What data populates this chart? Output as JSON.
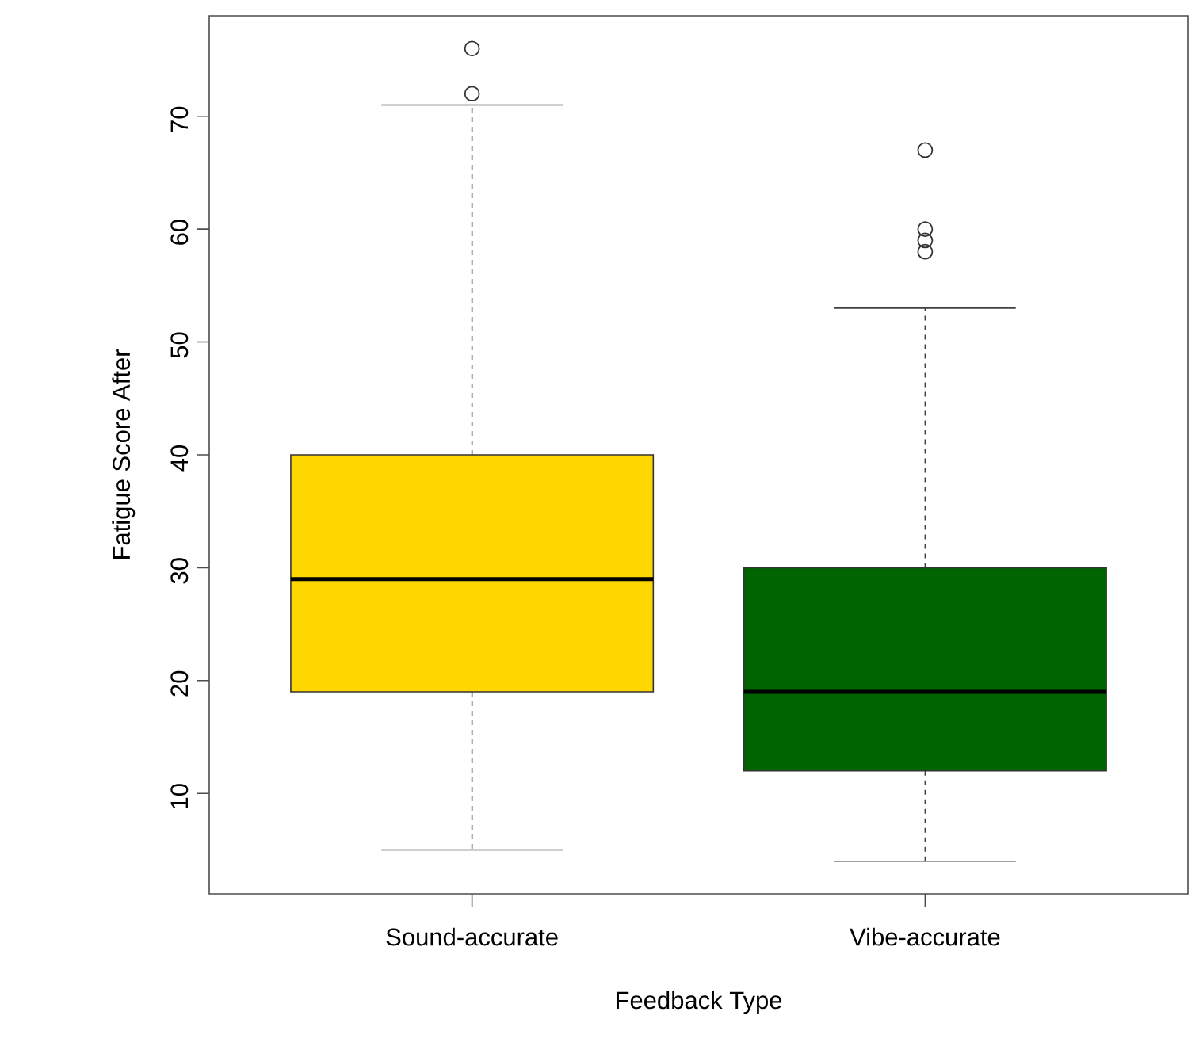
{
  "chart_data": {
    "type": "box",
    "xlabel": "Feedback Type",
    "ylabel": "Fatigue Score After",
    "categories": [
      "Sound-accurate",
      "Vibe-accurate"
    ],
    "colors": [
      "#ffd700",
      "#006400"
    ],
    "marker": "circle",
    "ylim": [
      1.1,
      78.9
    ],
    "yticks": [
      10,
      20,
      30,
      40,
      50,
      60,
      70
    ],
    "boxes": [
      {
        "low": 5,
        "q1": 19,
        "median": 29,
        "q3": 40,
        "high": 71,
        "outliers": [
          76,
          72
        ]
      },
      {
        "low": 4,
        "q1": 12,
        "median": 19,
        "q3": 30,
        "high": 53,
        "outliers": [
          67,
          60,
          59,
          58
        ]
      }
    ]
  }
}
